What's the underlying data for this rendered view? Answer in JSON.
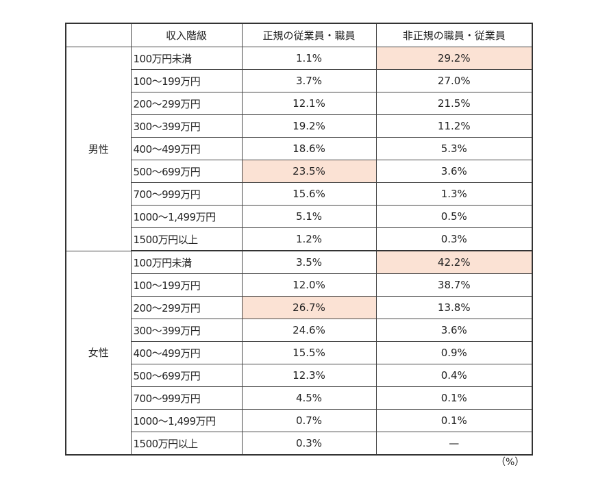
{
  "headers": [
    "",
    "収入階級",
    "正規の従業員・職員",
    "非正規の職員・従業員"
  ],
  "groups": [
    {
      "label": "男性",
      "rows": [
        {
          "income": "100万円未満",
          "regular": "1.1%",
          "nonregular": "29.2%",
          "hl": "nonregular"
        },
        {
          "income": "100〜199万円",
          "regular": "3.7%",
          "nonregular": "27.0%"
        },
        {
          "income": "200〜299万円",
          "regular": "12.1%",
          "nonregular": "21.5%"
        },
        {
          "income": "300〜399万円",
          "regular": "19.2%",
          "nonregular": "11.2%"
        },
        {
          "income": "400〜499万円",
          "regular": "18.6%",
          "nonregular": "5.3%"
        },
        {
          "income": "500〜699万円",
          "regular": "23.5%",
          "nonregular": "3.6%",
          "hl": "regular"
        },
        {
          "income": "700〜999万円",
          "regular": "15.6%",
          "nonregular": "1.3%"
        },
        {
          "income": "1000〜1,499万円",
          "regular": "5.1%",
          "nonregular": "0.5%"
        },
        {
          "income": "1500万円以上",
          "regular": "1.2%",
          "nonregular": "0.3%"
        }
      ]
    },
    {
      "label": "女性",
      "rows": [
        {
          "income": "100万円未満",
          "regular": "3.5%",
          "nonregular": "42.2%",
          "hl": "nonregular"
        },
        {
          "income": "100〜199万円",
          "regular": "12.0%",
          "nonregular": "38.7%"
        },
        {
          "income": "200〜299万円",
          "regular": "26.7%",
          "nonregular": "13.8%",
          "hl": "regular"
        },
        {
          "income": "300〜399万円",
          "regular": "24.6%",
          "nonregular": "3.6%"
        },
        {
          "income": "400〜499万円",
          "regular": "15.5%",
          "nonregular": "0.9%"
        },
        {
          "income": "500〜699万円",
          "regular": "12.3%",
          "nonregular": "0.4%"
        },
        {
          "income": "700〜999万円",
          "regular": "4.5%",
          "nonregular": "0.1%"
        },
        {
          "income": "1000〜1,499万円",
          "regular": "0.7%",
          "nonregular": "0.1%"
        },
        {
          "income": "1500万円以上",
          "regular": "0.3%",
          "nonregular": "—"
        }
      ]
    }
  ],
  "unit_note": "（%）",
  "colors": {
    "highlight": "#fbe2d4"
  }
}
